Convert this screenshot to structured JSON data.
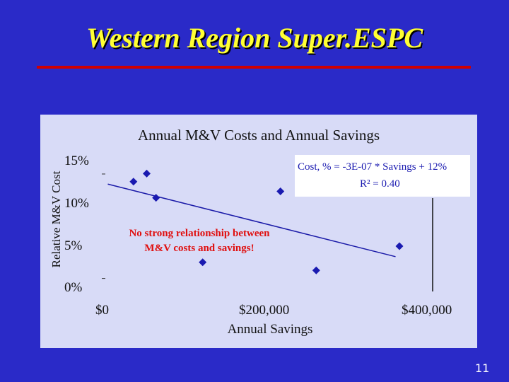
{
  "slide": {
    "title": "Western Region Super.ESPC",
    "number": "11",
    "colors": {
      "background": "#2a2ac8",
      "title": "#ffff33",
      "rule": "#d00000",
      "panel": "#d8dbf7",
      "marker": "#1a1ab0",
      "annotation": "#e01010"
    }
  },
  "chart_data": {
    "type": "scatter",
    "title": "Annual M&V Costs and Annual Savings",
    "xlabel": "Annual Savings",
    "ylabel": "Relative M&V Cost",
    "xticks": [
      "$0",
      "$200,000",
      "$400,000"
    ],
    "yticks": [
      "15%",
      "10%",
      "5%",
      "0%"
    ],
    "xlim": [
      0,
      400000
    ],
    "ylim": [
      0,
      15
    ],
    "grid": false,
    "points": [
      {
        "x": 38000,
        "y": 13.0
      },
      {
        "x": 55000,
        "y": 14.0
      },
      {
        "x": 67000,
        "y": 11.0
      },
      {
        "x": 127000,
        "y": 3.0
      },
      {
        "x": 227000,
        "y": 11.8
      },
      {
        "x": 273000,
        "y": 2.0
      },
      {
        "x": 380000,
        "y": 5.0
      }
    ],
    "trendline": {
      "slope": -3e-07,
      "intercept_percent": 12,
      "x_start": 5000,
      "x_end": 375000,
      "y_start": 12.7,
      "y_end": 3.7
    },
    "equation": "Cost, % = -3E-07 * Savings + 12%",
    "r_squared": "R² = 0.40",
    "annotation": [
      "No strong relationship between",
      "M&V costs and savings!"
    ]
  }
}
